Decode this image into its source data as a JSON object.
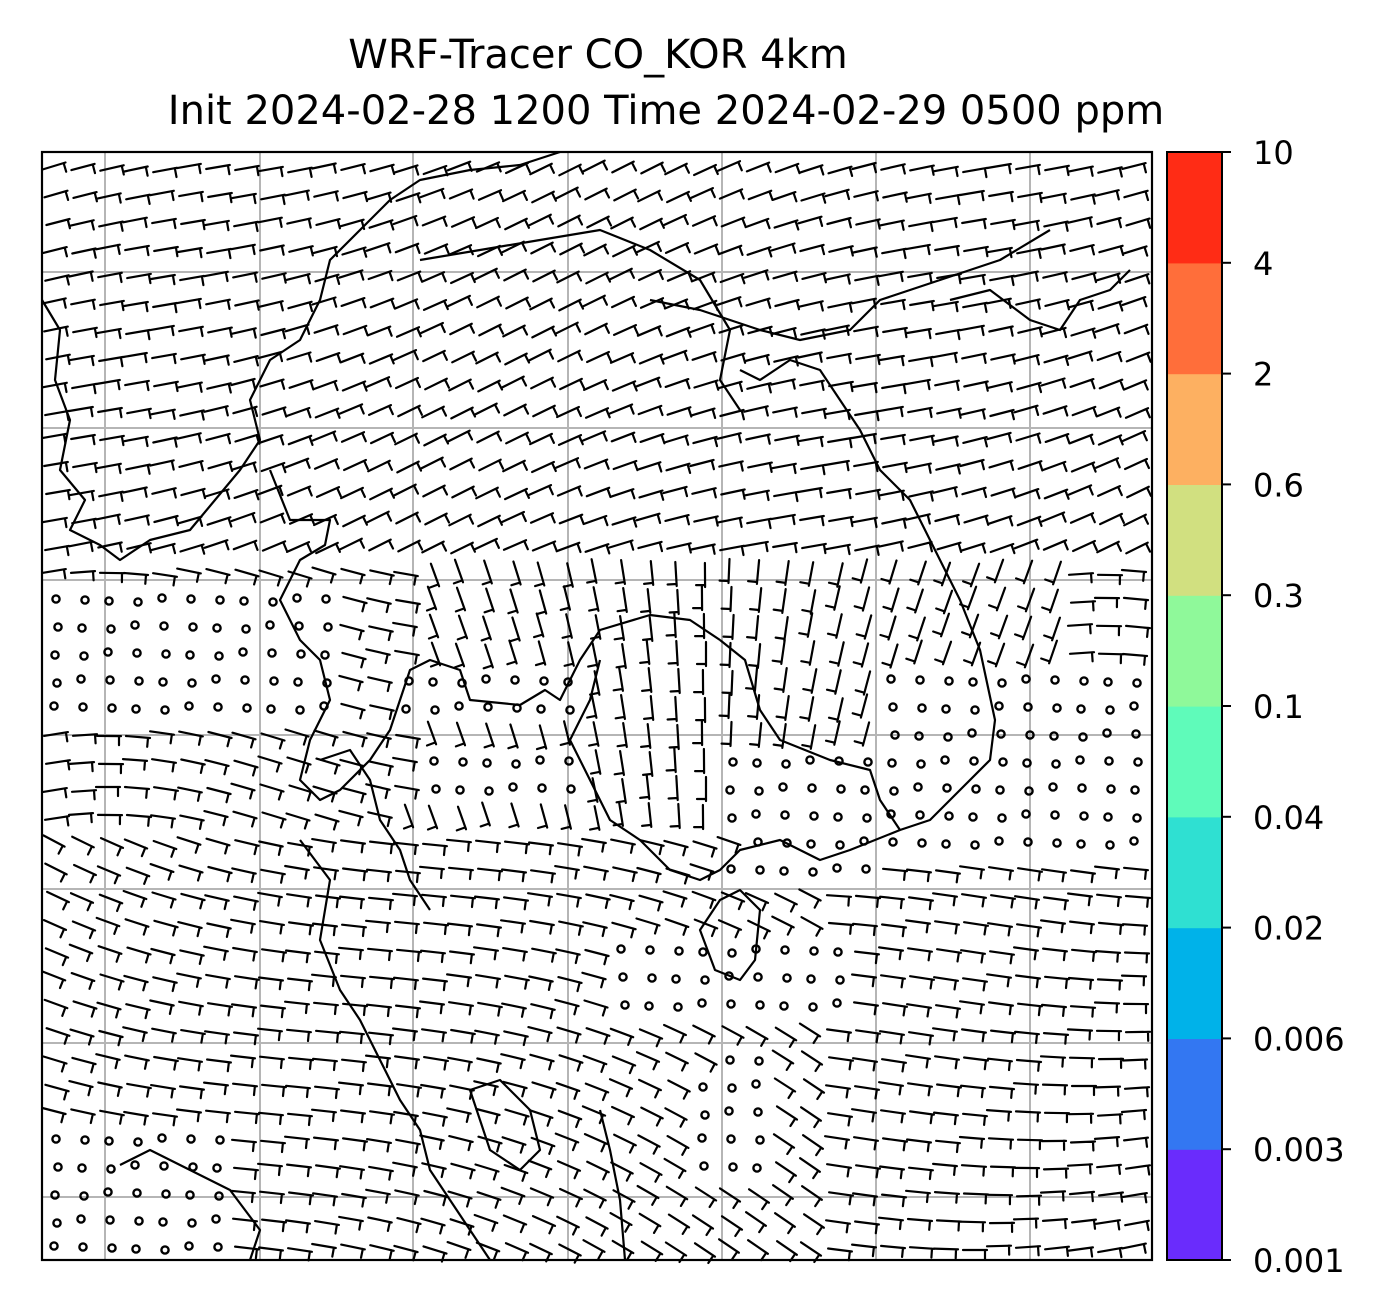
{
  "chart_data": {
    "type": "heatmap",
    "title": "WRF-Tracer CO_KOR 4km",
    "subtitle": "Init 2024-02-28 1200 Time 2024-02-29 0500 ppm",
    "grid": true,
    "map": {
      "gridlines": true,
      "coastlines": true,
      "wind_barbs": true
    },
    "colorbar": {
      "location": "right",
      "levels": [
        "0.001",
        "0.003",
        "0.006",
        "0.02",
        "0.04",
        "0.1",
        "0.3",
        "0.6",
        "2",
        "4",
        "10"
      ],
      "colors": [
        "#6a2cfc",
        "#3377f2",
        "#00b2e9",
        "#2fe0d2",
        "#5ffbba",
        "#8ff99a",
        "#d1e080",
        "#fdb061",
        "#ff6e3a",
        "#ff2c15"
      ]
    }
  }
}
